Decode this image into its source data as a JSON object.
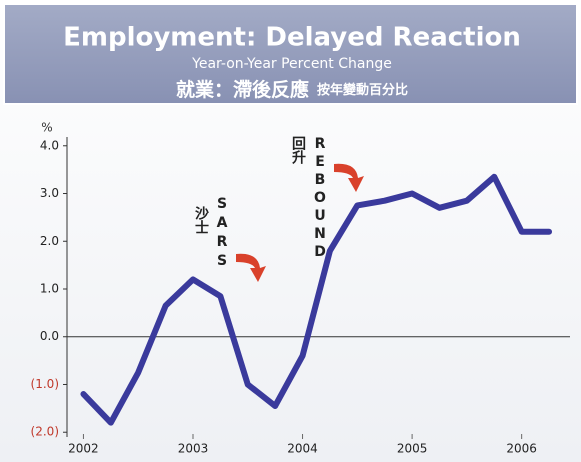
{
  "chart_data": {
    "type": "line",
    "title": "Employment: Delayed Reaction",
    "subtitle": "Year-on-Year Percent Change",
    "title_zh": "就業：滯後反應",
    "subtitle_zh": "按年變動百分比",
    "y_axis_label": "%",
    "x": [
      2002,
      2002.25,
      2002.5,
      2002.75,
      2003,
      2003.25,
      2003.5,
      2003.75,
      2004,
      2004.25,
      2004.5,
      2004.75,
      2005,
      2005.25,
      2005.5,
      2005.75,
      2006,
      2006.25
    ],
    "series": [
      {
        "name": "Employment",
        "color": "#3a3a9c",
        "values": [
          -1.2,
          -1.8,
          -0.75,
          0.65,
          1.2,
          0.85,
          -1.0,
          -1.45,
          -0.4,
          1.8,
          2.75,
          2.85,
          3.0,
          2.7,
          2.85,
          3.35,
          2.2,
          2.2
        ]
      }
    ],
    "xlim": [
      2001.85,
      2006.35
    ],
    "xticks": [
      2002,
      2003,
      2004,
      2005,
      2006
    ],
    "ylim": [
      -2.1,
      4.1
    ],
    "yticks": [
      {
        "value": 4,
        "label": "4.0"
      },
      {
        "value": 3,
        "label": "3.0"
      },
      {
        "value": 2,
        "label": "2.0"
      },
      {
        "value": 1,
        "label": "1.0"
      },
      {
        "value": 0,
        "label": "0.0"
      },
      {
        "value": -1,
        "label": "(1.0)"
      },
      {
        "value": -2,
        "label": "(2.0)"
      }
    ],
    "negative_tick_color": "#c0392b",
    "zero_line": true,
    "annotations": [
      {
        "text": "SARS",
        "text_zh": "沙士"
      },
      {
        "text": "REBOUND",
        "text_zh": "回升"
      }
    ]
  }
}
